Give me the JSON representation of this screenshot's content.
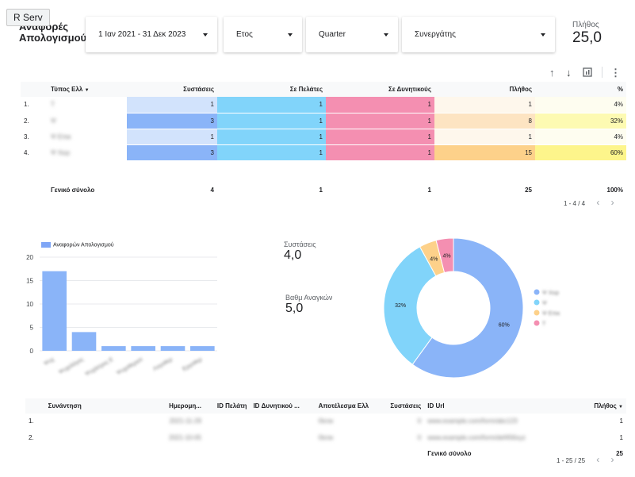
{
  "app_badge": "R Serv",
  "page_title": "Αναφορές Απολογισμού",
  "filters": [
    {
      "value": "1 Ιαν 2021 - 31 Δεκ 2023"
    },
    {
      "value": "Ετος"
    },
    {
      "value": "Quarter"
    },
    {
      "value": "Συνεργάτης"
    }
  ],
  "kpi_count": {
    "label": "Πλήθος",
    "value": "25,0"
  },
  "toolbar_icons": [
    "arrow-up-icon",
    "arrow-down-icon",
    "export-icon",
    "more-vert-icon"
  ],
  "main_table": {
    "headers": [
      "Τύπος Ελλ",
      "Συστάσεις",
      "Σε Πελάτες",
      "Σε Δυνητικούς",
      "Πλήθος",
      "%"
    ],
    "sort_indicator": "▼",
    "rows": [
      {
        "num": "1.",
        "type": "Τ",
        "sys": "1",
        "pel": "1",
        "dyn": "1",
        "count": "1",
        "pct": "4%"
      },
      {
        "num": "2.",
        "type": "Ψ",
        "sys": "3",
        "pel": "1",
        "dyn": "1",
        "count": "8",
        "pct": "32%"
      },
      {
        "num": "3.",
        "type": "Ψ Επικ",
        "sys": "1",
        "pel": "1",
        "dyn": "1",
        "count": "1",
        "pct": "4%"
      },
      {
        "num": "4.",
        "type": "Ψ Χειρ",
        "sys": "3",
        "pel": "1",
        "dyn": "1",
        "count": "15",
        "pct": "60%"
      }
    ],
    "total": {
      "label": "Γενικό σύνολο",
      "sys": "4",
      "pel": "1",
      "dyn": "1",
      "count": "25",
      "pct": "100%"
    },
    "pager": "1 - 4 / 4"
  },
  "chart_data": [
    {
      "type": "bar",
      "legend": "Αναφορών Απολογισμού",
      "categories": [
        "Ψυχ",
        "Ψυχολόγος",
        "Ψυχίατρος Ε",
        "Ψυχοθεραπ",
        "Λογοθερ",
        "Εργοθερ"
      ],
      "values": [
        17,
        4,
        1,
        1,
        1,
        1
      ],
      "ylim": [
        0,
        20
      ],
      "yticks": [
        "0",
        "5",
        "10",
        "15",
        "20"
      ]
    },
    {
      "type": "pie",
      "categories": [
        "Ψ Χειρ",
        "Ψ",
        "Ψ Επικ",
        "Τ"
      ],
      "values": [
        60,
        32,
        4,
        4
      ],
      "labels": [
        "60%",
        "32%",
        "4%",
        "4%"
      ],
      "colors": [
        "#8ab4f8",
        "#81d4fa",
        "#fdd18a",
        "#f48fb1"
      ]
    }
  ],
  "kpis": [
    {
      "label": "Συστάσεις",
      "value": "4,0"
    },
    {
      "label": "Βαθμ Αναγκών",
      "value": "5,0"
    }
  ],
  "bottom_table": {
    "headers": [
      "Συνάντηση",
      "Ημερομη...",
      "ID Πελάτη",
      "ID Δυνητικού ...",
      "Αποτέλεσμα Ελλ",
      "Συστάσεις",
      "ID Url",
      "Πλήθος"
    ],
    "sort_indicator": "▼",
    "rows": [
      {
        "num": "1.",
        "date": "2021-11-29",
        "result": "Θετικ",
        "sys": "0",
        "url": "www.example.com/form/abc123",
        "count": "1"
      },
      {
        "num": "2.",
        "date": "2021-10-05",
        "result": "Θετικ",
        "sys": "0",
        "url": "www.example.com/form/def456xyz",
        "count": "1"
      }
    ],
    "total_label": "Γενικό σύνολο",
    "total_count": "25",
    "pager": "1 - 25 / 25"
  }
}
